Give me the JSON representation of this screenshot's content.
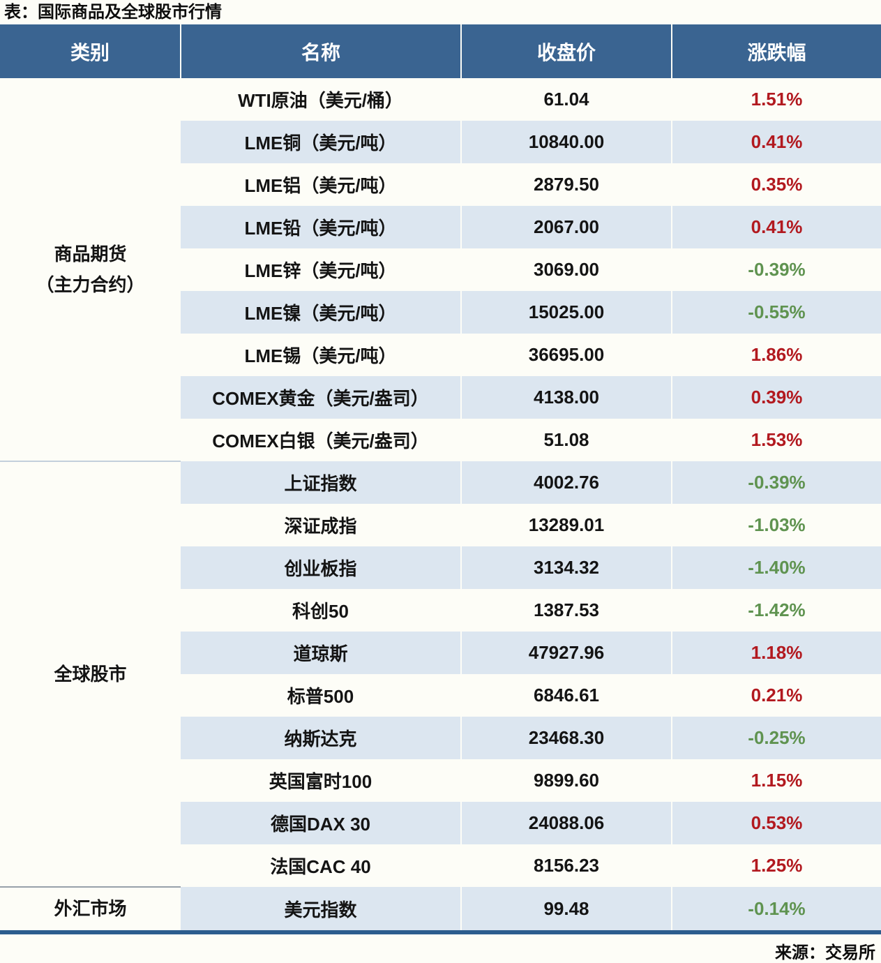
{
  "title": "表：国际商品及全球股市行情",
  "source": "来源：交易所",
  "colors": {
    "up_red": "#b2191f",
    "down_green": "#5f9350",
    "header_bg": "#3a6491",
    "alt_row_bg": "#dce6f0",
    "page_bg": "#fdfdf7",
    "bottom_rule": "#2c5d8e"
  },
  "table": {
    "headers": [
      "类别",
      "名称",
      "收盘价",
      "涨跌幅"
    ],
    "groups": [
      {
        "category_lines": [
          "商品期货",
          "（主力合约）"
        ],
        "rows": [
          {
            "name": "WTI原油（美元/桶）",
            "close": "61.04",
            "change": "1.51%"
          },
          {
            "name": "LME铜（美元/吨）",
            "close": "10840.00",
            "change": "0.41%"
          },
          {
            "name": "LME铝（美元/吨）",
            "close": "2879.50",
            "change": "0.35%"
          },
          {
            "name": "LME铅（美元/吨）",
            "close": "2067.00",
            "change": "0.41%"
          },
          {
            "name": "LME锌（美元/吨）",
            "close": "3069.00",
            "change": "-0.39%"
          },
          {
            "name": "LME镍（美元/吨）",
            "close": "15025.00",
            "change": "-0.55%"
          },
          {
            "name": "LME锡（美元/吨）",
            "close": "36695.00",
            "change": "1.86%"
          },
          {
            "name": "COMEX黄金（美元/盎司）",
            "close": "4138.00",
            "change": "0.39%"
          },
          {
            "name": "COMEX白银（美元/盎司）",
            "close": "51.08",
            "change": "1.53%"
          }
        ]
      },
      {
        "category_lines": [
          "全球股市"
        ],
        "rows": [
          {
            "name": "上证指数",
            "close": "4002.76",
            "change": "-0.39%"
          },
          {
            "name": "深证成指",
            "close": "13289.01",
            "change": "-1.03%"
          },
          {
            "name": "创业板指",
            "close": "3134.32",
            "change": "-1.40%"
          },
          {
            "name": "科创50",
            "close": "1387.53",
            "change": "-1.42%"
          },
          {
            "name": "道琼斯",
            "close": "47927.96",
            "change": "1.18%"
          },
          {
            "name": "标普500",
            "close": "6846.61",
            "change": "0.21%"
          },
          {
            "name": "纳斯达克",
            "close": "23468.30",
            "change": "-0.25%"
          },
          {
            "name": "英国富时100",
            "close": "9899.60",
            "change": "1.15%"
          },
          {
            "name": "德国DAX 30",
            "close": "24088.06",
            "change": "0.53%"
          },
          {
            "name": "法国CAC 40",
            "close": "8156.23",
            "change": "1.25%"
          }
        ]
      },
      {
        "category_lines": [
          "外汇市场"
        ],
        "rows": [
          {
            "name": "美元指数",
            "close": "99.48",
            "change": "-0.14%"
          }
        ]
      }
    ]
  },
  "chart_data": {
    "type": "table",
    "title": "表：国际商品及全球股市行情",
    "columns": [
      "类别",
      "名称",
      "收盘价",
      "涨跌幅"
    ],
    "rows": [
      [
        "商品期货（主力合约）",
        "WTI原油（美元/桶）",
        61.04,
        "1.51%"
      ],
      [
        "商品期货（主力合约）",
        "LME铜（美元/吨）",
        10840.0,
        "0.41%"
      ],
      [
        "商品期货（主力合约）",
        "LME铝（美元/吨）",
        2879.5,
        "0.35%"
      ],
      [
        "商品期货（主力合约）",
        "LME铅（美元/吨）",
        2067.0,
        "0.41%"
      ],
      [
        "商品期货（主力合约）",
        "LME锌（美元/吨）",
        3069.0,
        "-0.39%"
      ],
      [
        "商品期货（主力合约）",
        "LME镍（美元/吨）",
        15025.0,
        "-0.55%"
      ],
      [
        "商品期货（主力合约）",
        "LME锡（美元/吨）",
        36695.0,
        "1.86%"
      ],
      [
        "商品期货（主力合约）",
        "COMEX黄金（美元/盎司）",
        4138.0,
        "0.39%"
      ],
      [
        "商品期货（主力合约）",
        "COMEX白银（美元/盎司）",
        51.08,
        "1.53%"
      ],
      [
        "全球股市",
        "上证指数",
        4002.76,
        "-0.39%"
      ],
      [
        "全球股市",
        "深证成指",
        13289.01,
        "-1.03%"
      ],
      [
        "全球股市",
        "创业板指",
        3134.32,
        "-1.40%"
      ],
      [
        "全球股市",
        "科创50",
        1387.53,
        "-1.42%"
      ],
      [
        "全球股市",
        "道琼斯",
        47927.96,
        "1.18%"
      ],
      [
        "全球股市",
        "标普500",
        6846.61,
        "0.21%"
      ],
      [
        "全球股市",
        "纳斯达克",
        23468.3,
        "-0.25%"
      ],
      [
        "全球股市",
        "英国富时100",
        9899.6,
        "1.15%"
      ],
      [
        "全球股市",
        "德国DAX 30",
        24088.06,
        "0.53%"
      ],
      [
        "全球股市",
        "法国CAC 40",
        8156.23,
        "1.25%"
      ],
      [
        "外汇市场",
        "美元指数",
        99.48,
        "-0.14%"
      ]
    ],
    "notes": "positive change shown red, negative change shown green; source label bottom-right: 来源：交易所"
  }
}
